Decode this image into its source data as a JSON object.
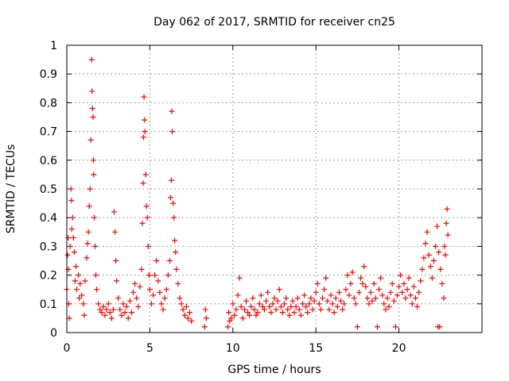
{
  "chart_data": {
    "type": "scatter",
    "title": "Day 062 of 2017, SRMTID for receiver cn25",
    "xlabel": "GPS time / hours",
    "ylabel": "SRMTID / TECUs",
    "xlim": [
      0,
      25
    ],
    "ylim": [
      0,
      1
    ],
    "xticks": [
      "0",
      "5",
      "10",
      "15",
      "20"
    ],
    "yticks": [
      "0",
      "0.1",
      "0.2",
      "0.3",
      "0.4",
      "0.5",
      "0.6",
      "0.7",
      "0.8",
      "0.9",
      "1"
    ],
    "grid": true,
    "marker": "+",
    "marker_color": "#ff0000",
    "series": [
      {
        "name": "SRMTID",
        "points": [
          [
            0.0,
            0.15
          ],
          [
            0.05,
            0.27
          ],
          [
            0.08,
            0.33
          ],
          [
            0.1,
            0.22
          ],
          [
            0.12,
            0.1
          ],
          [
            0.15,
            0.05
          ],
          [
            0.2,
            0.3
          ],
          [
            0.25,
            0.5
          ],
          [
            0.28,
            0.46
          ],
          [
            0.3,
            0.36
          ],
          [
            0.35,
            0.4
          ],
          [
            0.4,
            0.33
          ],
          [
            0.45,
            0.28
          ],
          [
            0.5,
            0.18
          ],
          [
            0.55,
            0.23
          ],
          [
            0.6,
            0.15
          ],
          [
            0.7,
            0.2
          ],
          [
            0.75,
            0.12
          ],
          [
            0.8,
            0.17
          ],
          [
            0.9,
            0.13
          ],
          [
            1.0,
            0.1
          ],
          [
            1.05,
            0.06
          ],
          [
            1.1,
            0.18
          ],
          [
            1.2,
            0.26
          ],
          [
            1.25,
            0.31
          ],
          [
            1.3,
            0.35
          ],
          [
            1.35,
            0.44
          ],
          [
            1.4,
            0.5
          ],
          [
            1.45,
            0.67
          ],
          [
            1.5,
            0.95
          ],
          [
            1.52,
            0.84
          ],
          [
            1.55,
            0.78
          ],
          [
            1.58,
            0.75
          ],
          [
            1.6,
            0.6
          ],
          [
            1.62,
            0.55
          ],
          [
            1.65,
            0.4
          ],
          [
            1.7,
            0.3
          ],
          [
            1.75,
            0.2
          ],
          [
            1.8,
            0.15
          ],
          [
            1.9,
            0.1
          ],
          [
            2.0,
            0.08
          ],
          [
            2.1,
            0.07
          ],
          [
            2.2,
            0.09
          ],
          [
            2.3,
            0.06
          ],
          [
            2.4,
            0.08
          ],
          [
            2.5,
            0.1
          ],
          [
            2.6,
            0.07
          ],
          [
            2.7,
            0.05
          ],
          [
            2.8,
            0.08
          ],
          [
            2.85,
            0.42
          ],
          [
            2.9,
            0.35
          ],
          [
            2.95,
            0.25
          ],
          [
            3.0,
            0.18
          ],
          [
            3.1,
            0.12
          ],
          [
            3.2,
            0.08
          ],
          [
            3.3,
            0.06
          ],
          [
            3.4,
            0.1
          ],
          [
            3.5,
            0.07
          ],
          [
            3.6,
            0.09
          ],
          [
            3.7,
            0.05
          ],
          [
            3.8,
            0.11
          ],
          [
            3.9,
            0.07
          ],
          [
            4.0,
            0.14
          ],
          [
            4.1,
            0.17
          ],
          [
            4.2,
            0.12
          ],
          [
            4.3,
            0.09
          ],
          [
            4.4,
            0.16
          ],
          [
            4.5,
            0.22
          ],
          [
            4.55,
            0.38
          ],
          [
            4.6,
            0.52
          ],
          [
            4.62,
            0.68
          ],
          [
            4.65,
            0.82
          ],
          [
            4.68,
            0.74
          ],
          [
            4.7,
            0.7
          ],
          [
            4.75,
            0.55
          ],
          [
            4.8,
            0.44
          ],
          [
            4.85,
            0.4
          ],
          [
            4.9,
            0.3
          ],
          [
            4.95,
            0.2
          ],
          [
            5.0,
            0.15
          ],
          [
            5.1,
            0.1
          ],
          [
            5.2,
            0.13
          ],
          [
            5.3,
            0.2
          ],
          [
            5.4,
            0.25
          ],
          [
            5.5,
            0.18
          ],
          [
            5.6,
            0.14
          ],
          [
            5.7,
            0.1
          ],
          [
            5.8,
            0.08
          ],
          [
            5.9,
            0.12
          ],
          [
            6.0,
            0.15
          ],
          [
            6.1,
            0.2
          ],
          [
            6.2,
            0.25
          ],
          [
            6.25,
            0.47
          ],
          [
            6.3,
            0.53
          ],
          [
            6.32,
            0.77
          ],
          [
            6.35,
            0.7
          ],
          [
            6.4,
            0.45
          ],
          [
            6.45,
            0.4
          ],
          [
            6.5,
            0.32
          ],
          [
            6.55,
            0.28
          ],
          [
            6.6,
            0.22
          ],
          [
            6.7,
            0.17
          ],
          [
            6.8,
            0.12
          ],
          [
            6.9,
            0.1
          ],
          [
            7.0,
            0.08
          ],
          [
            7.1,
            0.06
          ],
          [
            7.2,
            0.09
          ],
          [
            7.3,
            0.05
          ],
          [
            7.4,
            0.07
          ],
          [
            7.5,
            0.04
          ],
          [
            8.3,
            0.02
          ],
          [
            8.35,
            0.08
          ],
          [
            8.4,
            0.05
          ],
          [
            9.7,
            0.02
          ],
          [
            9.75,
            0.07
          ],
          [
            9.8,
            0.04
          ],
          [
            9.9,
            0.05
          ],
          [
            10.0,
            0.1
          ],
          [
            10.1,
            0.06
          ],
          [
            10.2,
            0.08
          ],
          [
            10.3,
            0.13
          ],
          [
            10.4,
            0.19
          ],
          [
            10.5,
            0.09
          ],
          [
            10.6,
            0.05
          ],
          [
            10.7,
            0.08
          ],
          [
            10.8,
            0.11
          ],
          [
            10.9,
            0.07
          ],
          [
            11.0,
            0.06
          ],
          [
            11.1,
            0.09
          ],
          [
            11.2,
            0.12
          ],
          [
            11.3,
            0.08
          ],
          [
            11.4,
            0.06
          ],
          [
            11.5,
            0.07
          ],
          [
            11.6,
            0.1
          ],
          [
            11.7,
            0.13
          ],
          [
            11.8,
            0.09
          ],
          [
            11.9,
            0.08
          ],
          [
            12.0,
            0.11
          ],
          [
            12.1,
            0.14
          ],
          [
            12.2,
            0.09
          ],
          [
            12.3,
            0.07
          ],
          [
            12.4,
            0.1
          ],
          [
            12.5,
            0.12
          ],
          [
            12.6,
            0.08
          ],
          [
            12.7,
            0.11
          ],
          [
            12.8,
            0.15
          ],
          [
            12.9,
            0.09
          ],
          [
            13.0,
            0.07
          ],
          [
            13.1,
            0.1
          ],
          [
            13.2,
            0.12
          ],
          [
            13.3,
            0.08
          ],
          [
            13.4,
            0.06
          ],
          [
            13.5,
            0.09
          ],
          [
            13.6,
            0.11
          ],
          [
            13.7,
            0.07
          ],
          [
            13.8,
            0.09
          ],
          [
            13.9,
            0.12
          ],
          [
            14.0,
            0.08
          ],
          [
            14.1,
            0.06
          ],
          [
            14.2,
            0.1
          ],
          [
            14.3,
            0.13
          ],
          [
            14.4,
            0.09
          ],
          [
            14.5,
            0.07
          ],
          [
            14.6,
            0.1
          ],
          [
            14.7,
            0.12
          ],
          [
            14.8,
            0.08
          ],
          [
            14.9,
            0.11
          ],
          [
            15.0,
            0.14
          ],
          [
            15.1,
            0.17
          ],
          [
            15.2,
            0.1
          ],
          [
            15.3,
            0.08
          ],
          [
            15.4,
            0.12
          ],
          [
            15.5,
            0.15
          ],
          [
            15.6,
            0.19
          ],
          [
            15.7,
            0.11
          ],
          [
            15.8,
            0.08
          ],
          [
            15.9,
            0.13
          ],
          [
            16.0,
            0.1
          ],
          [
            16.1,
            0.07
          ],
          [
            16.2,
            0.12
          ],
          [
            16.3,
            0.09
          ],
          [
            16.4,
            0.14
          ],
          [
            16.5,
            0.11
          ],
          [
            16.6,
            0.08
          ],
          [
            16.7,
            0.1
          ],
          [
            16.8,
            0.15
          ],
          [
            16.9,
            0.2
          ],
          [
            17.0,
            0.13
          ],
          [
            17.1,
            0.17
          ],
          [
            17.2,
            0.21
          ],
          [
            17.3,
            0.12
          ],
          [
            17.4,
            0.1
          ],
          [
            17.5,
            0.02
          ],
          [
            17.6,
            0.14
          ],
          [
            17.7,
            0.19
          ],
          [
            17.8,
            0.17
          ],
          [
            17.9,
            0.23
          ],
          [
            18.0,
            0.16
          ],
          [
            18.1,
            0.12
          ],
          [
            18.2,
            0.1
          ],
          [
            18.3,
            0.14
          ],
          [
            18.4,
            0.11
          ],
          [
            18.5,
            0.17
          ],
          [
            18.6,
            0.12
          ],
          [
            18.7,
            0.02
          ],
          [
            18.8,
            0.15
          ],
          [
            18.9,
            0.19
          ],
          [
            19.0,
            0.13
          ],
          [
            19.1,
            0.1
          ],
          [
            19.2,
            0.08
          ],
          [
            19.3,
            0.12
          ],
          [
            19.4,
            0.09
          ],
          [
            19.5,
            0.14
          ],
          [
            19.6,
            0.17
          ],
          [
            19.7,
            0.11
          ],
          [
            19.8,
            0.02
          ],
          [
            19.9,
            0.13
          ],
          [
            20.0,
            0.16
          ],
          [
            20.1,
            0.2
          ],
          [
            20.2,
            0.14
          ],
          [
            20.3,
            0.17
          ],
          [
            20.4,
            0.12
          ],
          [
            20.5,
            0.15
          ],
          [
            20.6,
            0.19
          ],
          [
            20.7,
            0.13
          ],
          [
            20.8,
            0.1
          ],
          [
            20.9,
            0.16
          ],
          [
            21.0,
            0.12
          ],
          [
            21.1,
            0.09
          ],
          [
            21.2,
            0.14
          ],
          [
            21.3,
            0.18
          ],
          [
            21.4,
            0.22
          ],
          [
            21.5,
            0.26
          ],
          [
            21.6,
            0.31
          ],
          [
            21.7,
            0.35
          ],
          [
            21.8,
            0.27
          ],
          [
            21.9,
            0.23
          ],
          [
            22.0,
            0.19
          ],
          [
            22.1,
            0.25
          ],
          [
            22.2,
            0.3
          ],
          [
            22.3,
            0.37
          ],
          [
            22.35,
            0.02
          ],
          [
            22.4,
            0.28
          ],
          [
            22.45,
            0.02
          ],
          [
            22.5,
            0.22
          ],
          [
            22.6,
            0.17
          ],
          [
            22.7,
            0.12
          ],
          [
            22.75,
            0.3
          ],
          [
            22.8,
            0.27
          ],
          [
            22.85,
            0.38
          ],
          [
            22.9,
            0.43
          ],
          [
            22.95,
            0.34
          ]
        ]
      }
    ]
  }
}
